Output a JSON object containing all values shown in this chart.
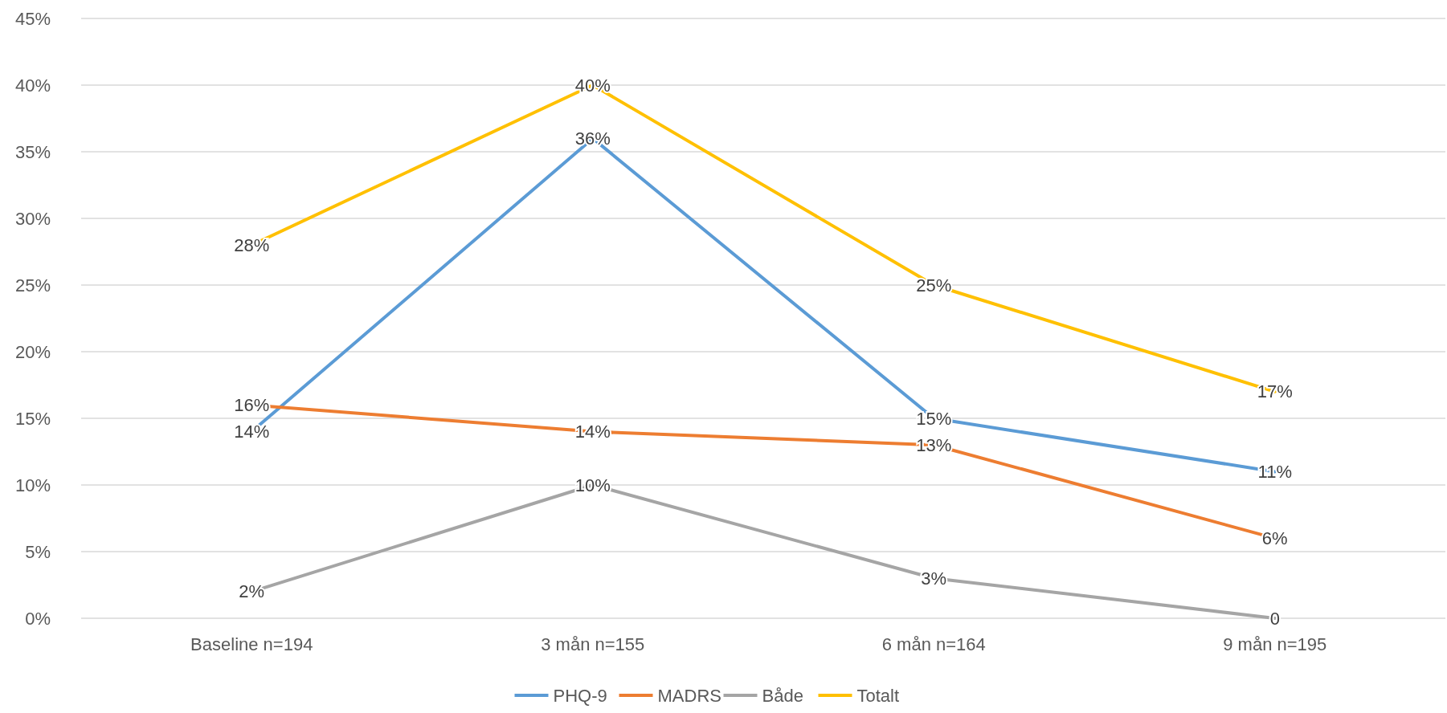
{
  "chart_data": {
    "type": "line",
    "categories": [
      "Baseline n=194",
      "3 mån n=155",
      "6 mån n=164",
      "9 mån n=195"
    ],
    "series": [
      {
        "name": "PHQ-9",
        "color": "#5b9bd5",
        "values": [
          14,
          36,
          15,
          11
        ],
        "value_labels": [
          "14%",
          "36%",
          "15%",
          "11%"
        ]
      },
      {
        "name": "MADRS",
        "color": "#ed7d31",
        "values": [
          16,
          14,
          13,
          6
        ],
        "value_labels": [
          "16%",
          "14%",
          "13%",
          "6%"
        ]
      },
      {
        "name": "Både",
        "color": "#a5a5a5",
        "values": [
          2,
          10,
          3,
          0
        ],
        "value_labels": [
          "2%",
          "10%",
          "3%",
          "0"
        ]
      },
      {
        "name": "Totalt",
        "color": "#ffc000",
        "values": [
          28,
          40,
          25,
          17
        ],
        "value_labels": [
          "28%",
          "40%",
          "25%",
          "17%"
        ]
      }
    ],
    "ylim": [
      0,
      45
    ],
    "yticks": [
      {
        "value": 0,
        "label": "0%"
      },
      {
        "value": 5,
        "label": "5%"
      },
      {
        "value": 10,
        "label": "10%"
      },
      {
        "value": 15,
        "label": "15%"
      },
      {
        "value": 20,
        "label": "20%"
      },
      {
        "value": 25,
        "label": "25%"
      },
      {
        "value": 30,
        "label": "30%"
      },
      {
        "value": 35,
        "label": "35%"
      },
      {
        "value": 40,
        "label": "40%"
      },
      {
        "value": 45,
        "label": "45%"
      }
    ],
    "grid": "y",
    "legend": "bottom",
    "marker": "none",
    "line_style": "solid"
  }
}
